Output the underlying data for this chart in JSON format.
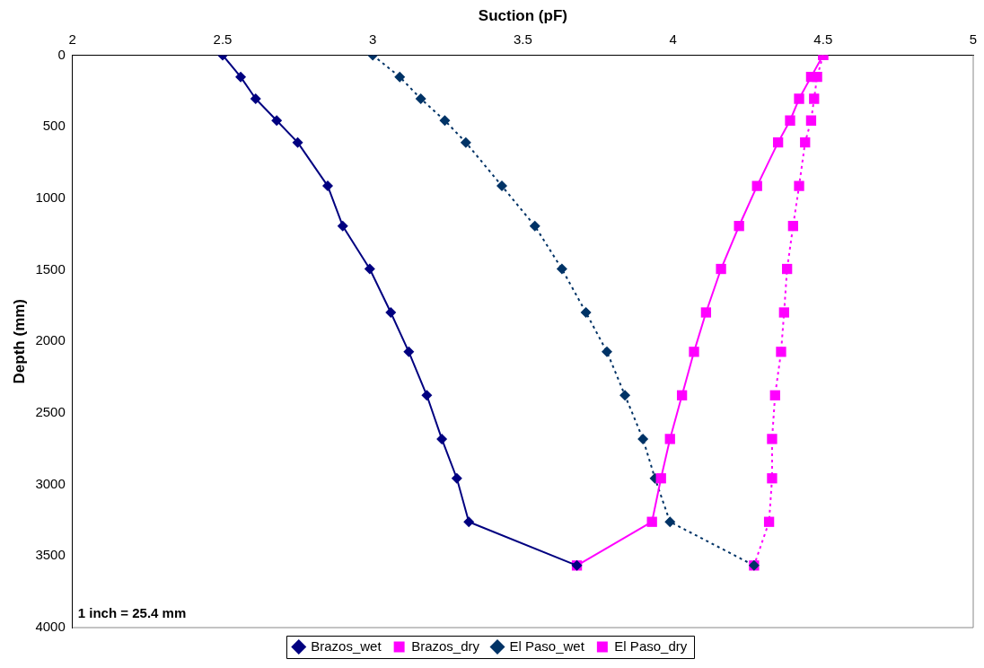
{
  "chart_data": {
    "type": "line",
    "xlabel": "Suction (pF)",
    "ylabel": "Depth (mm)",
    "xlim": [
      2,
      5
    ],
    "xticks": [
      2,
      2.5,
      3,
      3.5,
      4,
      4.5,
      5
    ],
    "ylim": [
      4000,
      0
    ],
    "yticks": [
      0,
      500,
      1000,
      1500,
      2000,
      2500,
      3000,
      3500,
      4000
    ],
    "grid": false,
    "legend": "bottom",
    "annotations": [
      "1 inch = 25.4 mm"
    ],
    "series": [
      {
        "name": "Brazos_wet",
        "color": "#000080",
        "marker": "diamond",
        "line_style": "solid",
        "x": [
          2.5,
          2.56,
          2.61,
          2.68,
          2.75,
          2.85,
          2.9,
          2.99,
          3.06,
          3.12,
          3.18,
          3.23,
          3.28,
          3.32,
          3.68
        ],
        "values": [
          0,
          152,
          305,
          457,
          610,
          914,
          1194,
          1494,
          1798,
          2073,
          2377,
          2682,
          2957,
          3261,
          3566
        ]
      },
      {
        "name": "Brazos_dry",
        "color": "#ff00ff",
        "marker": "square",
        "line_style": "solid",
        "x": [
          4.5,
          4.46,
          4.42,
          4.39,
          4.35,
          4.28,
          4.22,
          4.16,
          4.11,
          4.07,
          4.03,
          3.99,
          3.96,
          3.93,
          3.68
        ],
        "values": [
          0,
          152,
          305,
          457,
          610,
          914,
          1194,
          1494,
          1798,
          2073,
          2377,
          2682,
          2957,
          3261,
          3566
        ]
      },
      {
        "name": "El Paso_wet",
        "color": "#003366",
        "marker": "diamond",
        "line_style": "dashed",
        "x": [
          3.0,
          3.09,
          3.16,
          3.24,
          3.31,
          3.43,
          3.54,
          3.63,
          3.71,
          3.78,
          3.84,
          3.9,
          3.94,
          3.99,
          4.27
        ],
        "values": [
          0,
          152,
          305,
          457,
          610,
          914,
          1194,
          1494,
          1798,
          2073,
          2377,
          2682,
          2957,
          3261,
          3566
        ]
      },
      {
        "name": "El Paso_dry",
        "color": "#ff00ff",
        "marker": "square",
        "line_style": "dashed",
        "x": [
          4.5,
          4.48,
          4.47,
          4.46,
          4.44,
          4.42,
          4.4,
          4.38,
          4.37,
          4.36,
          4.34,
          4.33,
          4.33,
          4.32,
          4.27
        ],
        "values": [
          0,
          152,
          305,
          457,
          610,
          914,
          1194,
          1494,
          1798,
          2073,
          2377,
          2682,
          2957,
          3261,
          3566
        ]
      }
    ]
  }
}
